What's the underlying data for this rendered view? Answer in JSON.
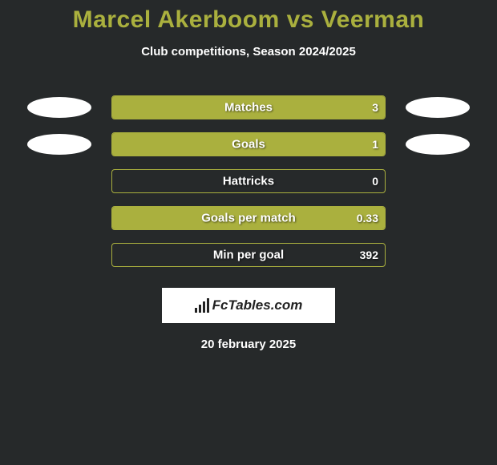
{
  "title": "Marcel Akerboom vs Veerman",
  "subtitle": "Club competitions, Season 2024/2025",
  "date": "20 february 2025",
  "logo_text": "FcTables.com",
  "colors": {
    "background": "#26292a",
    "accent": "#aab03e",
    "text": "#ffffff",
    "photo": "#ffffff"
  },
  "stats": [
    {
      "label": "Matches",
      "left_value": "",
      "right_value": "3",
      "left_fill_pct": 0,
      "right_fill_pct": 100,
      "show_left_photo": true,
      "show_right_photo": true
    },
    {
      "label": "Goals",
      "left_value": "",
      "right_value": "1",
      "left_fill_pct": 0,
      "right_fill_pct": 100,
      "show_left_photo": true,
      "show_right_photo": true
    },
    {
      "label": "Hattricks",
      "left_value": "",
      "right_value": "0",
      "left_fill_pct": 0,
      "right_fill_pct": 0,
      "show_left_photo": false,
      "show_right_photo": false
    },
    {
      "label": "Goals per match",
      "left_value": "",
      "right_value": "0.33",
      "left_fill_pct": 0,
      "right_fill_pct": 100,
      "show_left_photo": false,
      "show_right_photo": false
    },
    {
      "label": "Min per goal",
      "left_value": "",
      "right_value": "392",
      "left_fill_pct": 0,
      "right_fill_pct": 0,
      "show_left_photo": false,
      "show_right_photo": false
    }
  ]
}
